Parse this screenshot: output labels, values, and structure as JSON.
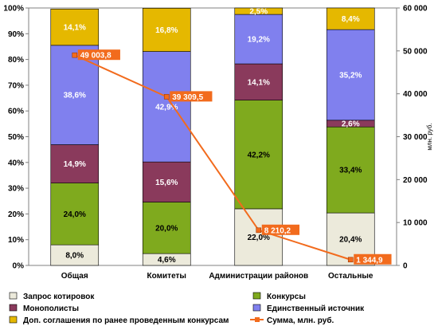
{
  "chart_data": {
    "type": "bar",
    "stacked": true,
    "stacked_percent": true,
    "categories": [
      "Общая",
      "Комитеты",
      "Администрации районов",
      "Остальные"
    ],
    "series": [
      {
        "name": "Запрос котировок",
        "values": [
          8.0,
          4.6,
          22.0,
          20.4
        ],
        "labels": [
          "8,0%",
          "4,6%",
          "22,0%",
          "20,4%"
        ],
        "color": "#eceadb",
        "label_color": "#000000"
      },
      {
        "name": "Конкурсы",
        "values": [
          24.0,
          20.0,
          42.2,
          33.4
        ],
        "labels": [
          "24,0%",
          "20,0%",
          "42,2%",
          "33,4%"
        ],
        "color": "#7faa1e",
        "label_color": "#000000"
      },
      {
        "name": "Монополисты",
        "values": [
          14.9,
          15.6,
          14.1,
          2.6
        ],
        "labels": [
          "14,9%",
          "15,6%",
          "14,1%",
          "2,6%"
        ],
        "color": "#8a3a5c",
        "label_color": "#ffffff"
      },
      {
        "name": "Единственный источник",
        "values": [
          38.6,
          42.9,
          19.2,
          35.2
        ],
        "labels": [
          "38,6%",
          "42,9%",
          "19,2%",
          "35,2%"
        ],
        "color": "#8080ee",
        "label_color": "#ffffff"
      },
      {
        "name": "Доп. соглашения по ранее проведенным конкурсам",
        "values": [
          14.1,
          16.8,
          2.5,
          8.4
        ],
        "labels": [
          "14,1%",
          "16,8%",
          "2,5%",
          "8,4%"
        ],
        "color": "#e5b800",
        "label_color": "#ffffff"
      }
    ],
    "line_series": {
      "name": "Сумма, млн. руб.",
      "axis": "right",
      "values": [
        49003.8,
        39309.5,
        8210.2,
        1344.9
      ],
      "labels": [
        "49 003,8",
        "39 309,5",
        "8 210,2",
        "1 344,9"
      ],
      "color": "#f26b1d"
    },
    "y_left": {
      "ylim": [
        0,
        100
      ],
      "ticks": [
        "0%",
        "10%",
        "20%",
        "30%",
        "40%",
        "50%",
        "60%",
        "70%",
        "80%",
        "90%",
        "100%"
      ]
    },
    "y_right": {
      "ylim": [
        0,
        60000
      ],
      "ticks": [
        "0",
        "10 000",
        "20 000",
        "30 000",
        "40 000",
        "50 000",
        "60 000"
      ],
      "label": "млн. руб."
    },
    "legend": {
      "placement": "bottom",
      "columns": 2
    }
  }
}
